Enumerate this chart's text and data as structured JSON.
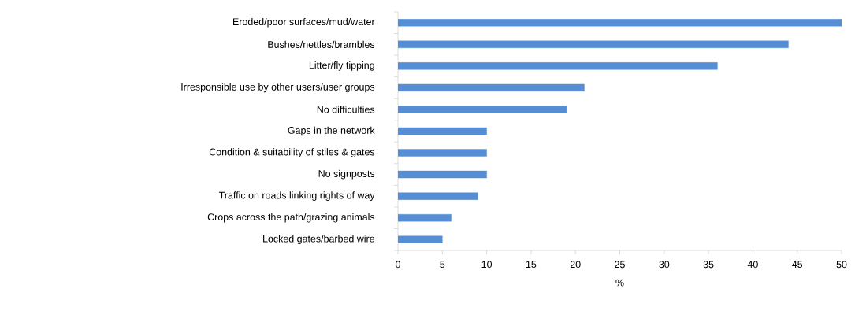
{
  "chart_data": {
    "type": "bar",
    "orientation": "horizontal",
    "xlabel": "%",
    "categories": [
      "Eroded/poor surfaces/mud/water",
      "Bushes/nettles/brambles",
      "Litter/fly tipping",
      "Irresponsible use by other users/user groups",
      "No difficulties",
      "Gaps in the network",
      "Condition & suitability of stiles & gates",
      "No signposts",
      "Traffic on roads linking rights of way",
      "Crops across the path/grazing animals",
      "Locked gates/barbed wire"
    ],
    "values": [
      50,
      44,
      36,
      21,
      19,
      10,
      10,
      10,
      9,
      6,
      5
    ],
    "color": "#558ed5",
    "xlim": [
      0,
      50
    ],
    "xticks": [
      0,
      5,
      10,
      15,
      20,
      25,
      30,
      35,
      40,
      45,
      50
    ]
  }
}
